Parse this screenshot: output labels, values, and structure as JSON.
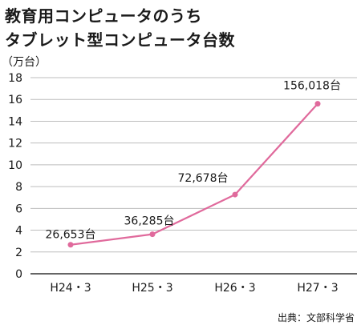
{
  "title_line1": "教育用コンピュータのうち",
  "title_line2": "タブレット型コンピュータ台数",
  "unit_label": "（万台）",
  "source": "出典：文部科学省",
  "colors": {
    "line": "#e06a9c",
    "highlight_text": "#e06a9c",
    "grid": "#bdbdbd",
    "axis": "#333333"
  },
  "chart_data": {
    "type": "line",
    "categories": [
      "H24・3",
      "H25・3",
      "H26・3",
      "H27・3"
    ],
    "values": [
      2.6653,
      3.6285,
      7.2678,
      15.6018
    ],
    "data_labels": [
      "26,653台",
      "36,285台",
      "72,678台",
      "156,018台"
    ],
    "ylabel": "（万台）",
    "ylim": [
      0,
      18
    ],
    "yticks": [
      0,
      2,
      4,
      6,
      8,
      10,
      12,
      14,
      16,
      18
    ],
    "grid": true,
    "legend": false
  }
}
